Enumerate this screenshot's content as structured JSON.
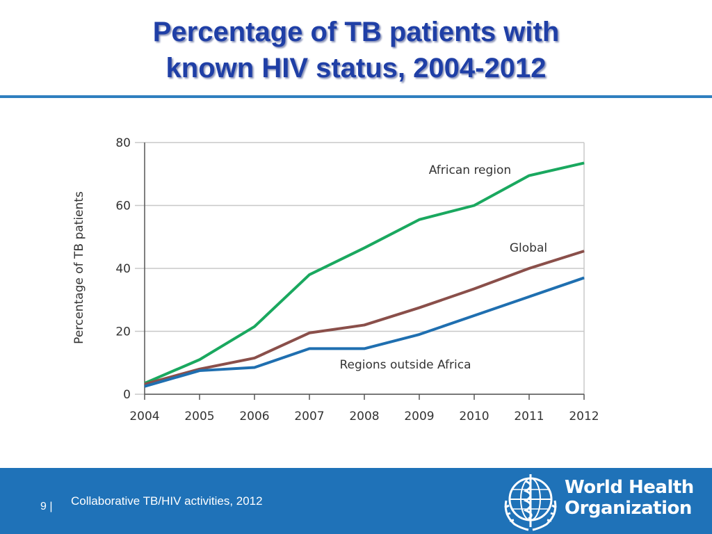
{
  "slide": {
    "title_line1": "Percentage of TB patients with",
    "title_line2": "known HIV status, 2004-2012",
    "page_number": "9 |",
    "footer_text": "Collaborative TB/HIV activities, 2012",
    "org_name_line1": "World Health",
    "org_name_line2": "Organization",
    "colors": {
      "title": "#1f3fa6",
      "rule": "#2f7fbf",
      "footer": "#1f72b8"
    }
  },
  "chart_data": {
    "type": "line",
    "title": "",
    "xlabel": "",
    "ylabel": "Percentage of TB patients",
    "x": [
      "2004",
      "2005",
      "2006",
      "2007",
      "2008",
      "2009",
      "2010",
      "2011",
      "2012"
    ],
    "yticks": [
      "0",
      "20",
      "40",
      "60",
      "80"
    ],
    "ylim": [
      0,
      80
    ],
    "grid": true,
    "series": [
      {
        "name": "African region",
        "color": "#1aa85f",
        "values": [
          3.5,
          11,
          21.5,
          38,
          46.5,
          55.5,
          60,
          69.5,
          73.5
        ]
      },
      {
        "name": "Global",
        "color": "#8a4f4a",
        "values": [
          3.2,
          8,
          11.5,
          19.5,
          22,
          27.5,
          33.5,
          40,
          45.5
        ]
      },
      {
        "name": "Regions outside Africa",
        "color": "#1f6fb0",
        "values": [
          2.5,
          7.5,
          8.5,
          14.5,
          14.5,
          19,
          25,
          31,
          37
        ]
      }
    ]
  }
}
